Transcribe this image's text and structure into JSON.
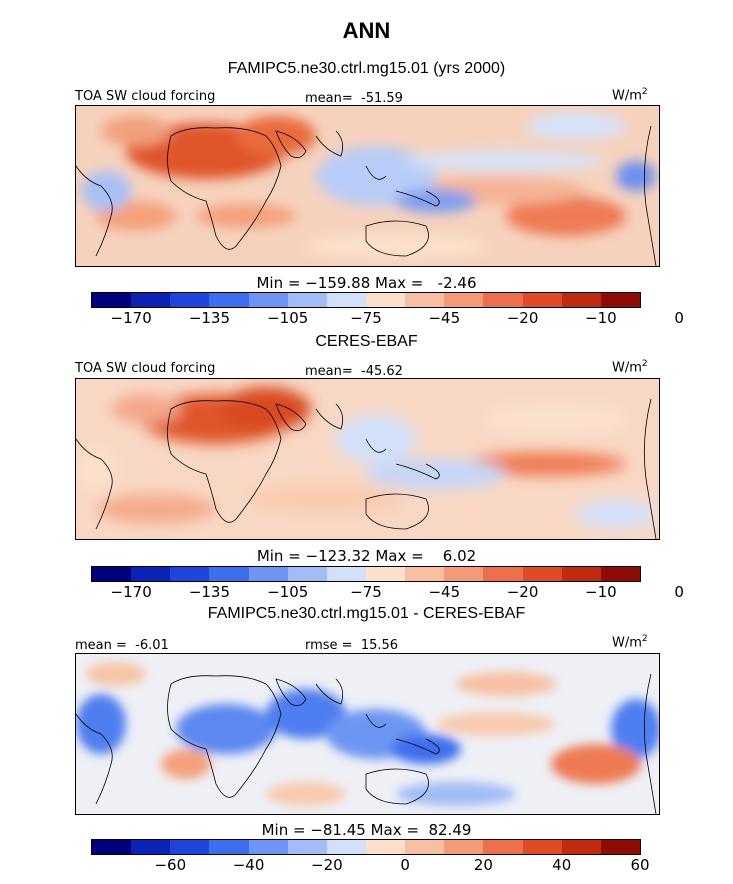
{
  "figure": {
    "title": "ANN",
    "units_base": "W/m",
    "units_exp": "2"
  },
  "panels": [
    {
      "subtitle": "FAMIPC5.ne30.ctrl.mg15.01 (yrs 2000)",
      "left_label": "TOA SW cloud forcing",
      "center_label": "mean=  -51.59",
      "minmax": "Min = −159.88 Max =   -2.46",
      "ticks": [
        "−170",
        "−135",
        "−105",
        "−75",
        "−45",
        "−20",
        "−10",
        "0"
      ],
      "colors": [
        "#00007f",
        "#0a23b4",
        "#1e46dc",
        "#3c6eef",
        "#6d95f3",
        "#a1bcf6",
        "#d2e1fa",
        "#fbe1cc",
        "#f8bfa0",
        "#f49a76",
        "#ee704b",
        "#e04a24",
        "#c02a0f",
        "#8e0c04"
      ]
    },
    {
      "subtitle": "CERES-EBAF",
      "left_label": "TOA SW cloud forcing",
      "center_label": "mean=  -45.62",
      "minmax": "Min = −123.32 Max =    6.02",
      "ticks": [
        "−170",
        "−135",
        "−105",
        "−75",
        "−45",
        "−20",
        "−10",
        "0"
      ],
      "colors": [
        "#00007f",
        "#0a23b4",
        "#1e46dc",
        "#3c6eef",
        "#6d95f3",
        "#a1bcf6",
        "#d2e1fa",
        "#fbe1cc",
        "#f8bfa0",
        "#f49a76",
        "#ee704b",
        "#e04a24",
        "#c02a0f",
        "#8e0c04"
      ]
    },
    {
      "subtitle": "FAMIPC5.ne30.ctrl.mg15.01 - CERES-EBAF",
      "left_label": "mean =  -6.01",
      "center_label": "rmse =  15.56",
      "minmax": "Min = −81.45 Max =  82.49",
      "ticks": [
        "−60",
        "−40",
        "−20",
        "0",
        "20",
        "40",
        "60"
      ],
      "colors": [
        "#00007f",
        "#0a23b4",
        "#1e46dc",
        "#3c6eef",
        "#6d95f3",
        "#a1bcf6",
        "#d2e1fa",
        "#fbe1cc",
        "#f8bfa0",
        "#f49a76",
        "#ee704b",
        "#e04a24",
        "#c02a0f",
        "#8e0c04"
      ]
    }
  ],
  "chart_data": [
    {
      "type": "heatmap",
      "title": "TOA SW cloud forcing — FAMIPC5.ne30.ctrl.mg15.01 (yrs 2000)",
      "units": "W/m2",
      "mean": -51.59,
      "min": -159.88,
      "max": -2.46,
      "colorbar_ticks": [
        -170,
        -135,
        -105,
        -75,
        -45,
        -20,
        -10,
        0
      ]
    },
    {
      "type": "heatmap",
      "title": "TOA SW cloud forcing — CERES-EBAF",
      "units": "W/m2",
      "mean": -45.62,
      "min": -123.32,
      "max": 6.02,
      "colorbar_ticks": [
        -170,
        -135,
        -105,
        -75,
        -45,
        -20,
        -10,
        0
      ]
    },
    {
      "type": "heatmap",
      "title": "FAMIPC5.ne30.ctrl.mg15.01 - CERES-EBAF",
      "units": "W/m2",
      "mean": -6.01,
      "rmse": 15.56,
      "min": -81.45,
      "max": 82.49,
      "colorbar_ticks": [
        -60,
        -40,
        -20,
        0,
        20,
        40,
        60
      ]
    }
  ]
}
